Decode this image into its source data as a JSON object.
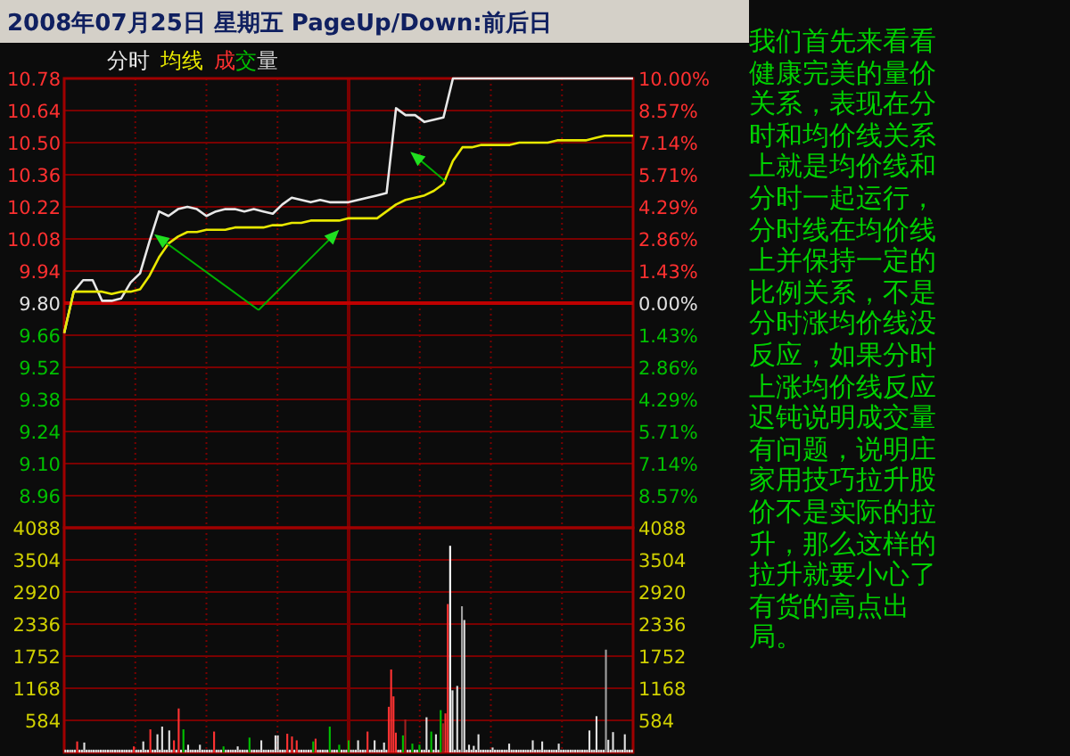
{
  "chart_data": [
    {
      "type": "line",
      "title": "2008年07月25日 星期五 PageUp/Down:前后日",
      "grid": true,
      "tick_labels": "y",
      "categories": [
        null,
        null,
        null,
        null,
        null,
        null,
        null,
        null,
        null,
        null,
        null,
        null,
        null,
        null,
        null,
        null,
        null,
        null,
        null,
        null,
        null,
        null,
        null,
        null,
        null,
        null,
        null,
        null,
        null,
        null,
        null,
        null,
        null,
        null,
        null,
        null,
        null,
        null,
        null,
        null,
        null,
        null,
        null,
        null,
        null,
        null,
        null,
        null,
        null,
        null,
        null,
        null,
        null,
        null,
        null,
        null,
        null,
        null,
        null,
        null,
        null
      ],
      "ylim": [
        8.82,
        10.78
      ],
      "yticks": [
        {
          "value": 10.78,
          "label": "10.78"
        },
        {
          "value": 10.64,
          "label": "10.64"
        },
        {
          "value": 10.5,
          "label": "10.50"
        },
        {
          "value": 10.36,
          "label": "10.36"
        },
        {
          "value": 10.22,
          "label": "10.22"
        },
        {
          "value": 10.08,
          "label": "10.08"
        },
        {
          "value": 9.94,
          "label": "9.94"
        },
        {
          "value": 9.8,
          "label": "9.80"
        },
        {
          "value": 9.66,
          "label": "9.66"
        },
        {
          "value": 9.52,
          "label": "9.52"
        },
        {
          "value": 9.38,
          "label": "9.38"
        },
        {
          "value": 9.24,
          "label": "9.24"
        },
        {
          "value": 9.1,
          "label": "9.10"
        },
        {
          "value": 8.96,
          "label": "8.96"
        }
      ],
      "y2lim": [
        -10,
        10
      ],
      "y2ticks": [
        {
          "value": 10,
          "label": "10.00%"
        },
        {
          "value": 8.57,
          "label": "8.57%"
        },
        {
          "value": 7.14,
          "label": "7.14%"
        },
        {
          "value": 5.71,
          "label": "5.71%"
        },
        {
          "value": 4.29,
          "label": "4.29%"
        },
        {
          "value": 2.86,
          "label": "2.86%"
        },
        {
          "value": 1.43,
          "label": "1.43%"
        },
        {
          "value": 0,
          "label": "0.00%"
        },
        {
          "value": -1.43,
          "label": "1.43%"
        },
        {
          "value": -2.86,
          "label": "2.86%"
        },
        {
          "value": -4.29,
          "label": "4.29%"
        },
        {
          "value": -5.71,
          "label": "5.71%"
        },
        {
          "value": -7.14,
          "label": "7.14%"
        },
        {
          "value": -8.57,
          "label": "8.57%"
        }
      ],
      "ref_lines": [
        {
          "axis": "y",
          "value": 9.8,
          "color": "#c00000"
        }
      ],
      "series": [
        {
          "name": "分时",
          "color": "#e8e8e8",
          "values": [
            9.67,
            9.85,
            9.9,
            9.9,
            9.81,
            9.81,
            9.82,
            9.89,
            9.93,
            10.07,
            10.2,
            10.18,
            10.21,
            10.22,
            10.21,
            10.18,
            10.2,
            10.21,
            10.21,
            10.2,
            10.21,
            10.2,
            10.19,
            10.23,
            10.26,
            10.25,
            10.24,
            10.25,
            10.24,
            10.24,
            10.24,
            10.25,
            10.26,
            10.27,
            10.28,
            10.65,
            10.62,
            10.62,
            10.59,
            10.6,
            10.61,
            10.78,
            10.78,
            10.78,
            10.78,
            10.78,
            10.78,
            10.78,
            10.78,
            10.78,
            10.78,
            10.78,
            10.78,
            10.78,
            10.78,
            10.78,
            10.78,
            10.78,
            10.78,
            10.78,
            10.78
          ]
        },
        {
          "name": "均线",
          "color": "#e8e800",
          "values": [
            9.67,
            9.85,
            9.85,
            9.85,
            9.85,
            9.84,
            9.85,
            9.85,
            9.86,
            9.92,
            10.0,
            10.06,
            10.09,
            10.11,
            10.11,
            10.12,
            10.12,
            10.12,
            10.13,
            10.13,
            10.13,
            10.13,
            10.14,
            10.14,
            10.15,
            10.15,
            10.16,
            10.16,
            10.16,
            10.16,
            10.17,
            10.17,
            10.17,
            10.17,
            10.2,
            10.23,
            10.25,
            10.26,
            10.27,
            10.29,
            10.32,
            10.42,
            10.48,
            10.48,
            10.49,
            10.49,
            10.49,
            10.49,
            10.5,
            10.5,
            10.5,
            10.5,
            10.51,
            10.51,
            10.51,
            10.51,
            10.52,
            10.53,
            10.53,
            10.53,
            10.53
          ]
        }
      ],
      "annotations": [
        "我们首先来看看健康完美的量价关系，表现在分时和均价线关系上就是均价线和分时一起运行，分时线在均价线上并保持一定的比例关系，不是分时涨均价线没反应，如果分时上涨均价线反应迟钝说明成交量有问题，说明庄家用技巧拉升股价不是实际的拉升，那么这样的拉升就要小心了有货的高点出局。"
      ]
    },
    {
      "type": "bar",
      "title": "成交量",
      "grid": true,
      "tick_labels": "y",
      "categories": [
        null,
        null,
        null,
        null,
        null,
        null,
        null,
        null,
        null,
        null,
        null,
        null,
        null,
        null,
        null,
        null,
        null,
        null,
        null,
        null,
        null,
        null,
        null,
        null,
        null,
        null,
        null,
        null,
        null,
        null,
        null,
        null,
        null,
        null,
        null,
        null,
        null,
        null,
        null,
        null,
        null,
        null,
        null,
        null,
        null,
        null,
        null,
        null,
        null,
        null,
        null,
        null,
        null,
        null,
        null,
        null,
        null,
        null,
        null,
        null,
        null,
        null,
        null,
        null,
        null,
        null,
        null,
        null,
        null,
        null,
        null,
        null,
        null,
        null,
        null,
        null,
        null,
        null,
        null,
        null,
        null,
        null,
        null,
        null,
        null,
        null,
        null,
        null,
        null,
        null,
        null,
        null,
        null,
        null,
        null,
        null,
        null,
        null,
        null,
        null,
        null,
        null,
        null,
        null,
        null,
        null,
        null,
        null,
        null,
        null,
        null,
        null,
        null,
        null,
        null,
        null,
        null,
        null,
        null,
        null,
        null,
        null,
        null,
        null,
        null,
        null,
        null,
        null,
        null,
        null,
        null,
        null,
        null,
        null,
        null,
        null,
        null,
        null,
        null,
        null,
        null,
        null,
        null,
        null,
        null,
        null,
        null,
        null,
        null,
        null,
        null,
        null,
        null,
        null,
        null,
        null,
        null,
        null,
        null,
        null,
        null,
        null,
        null,
        null,
        null,
        null,
        null,
        null,
        null,
        null,
        null,
        null,
        null,
        null,
        null,
        null,
        null,
        null,
        null,
        null,
        null,
        null,
        null,
        null,
        null,
        null,
        null,
        null,
        null,
        null,
        null,
        null,
        null,
        null,
        null,
        null,
        null,
        null,
        null,
        null,
        null,
        null,
        null,
        null,
        null,
        null,
        null,
        null,
        null,
        null,
        null,
        null,
        null,
        null,
        null,
        null,
        null,
        null,
        null,
        null,
        null,
        null,
        null,
        null,
        null,
        null,
        null,
        null,
        null,
        null,
        null,
        null,
        null,
        null,
        null,
        null,
        null,
        null,
        null,
        null,
        null
      ],
      "ylim": [
        0,
        4088
      ],
      "yticks": [
        {
          "value": 4088,
          "label": "4088"
        },
        {
          "value": 3504,
          "label": "3504"
        },
        {
          "value": 2920,
          "label": "2920"
        },
        {
          "value": 2336,
          "label": "2336"
        },
        {
          "value": 1752,
          "label": "1752"
        },
        {
          "value": 1168,
          "label": "1168"
        },
        {
          "value": 584,
          "label": "584"
        }
      ],
      "y2lim": [
        0,
        4088
      ],
      "y2ticks": [
        {
          "value": 4088,
          "label": "4088"
        },
        {
          "value": 3504,
          "label": "3504"
        },
        {
          "value": 2920,
          "label": "2920"
        },
        {
          "value": 2336,
          "label": "2336"
        },
        {
          "value": 1752,
          "label": "1752"
        },
        {
          "value": 1168,
          "label": "1168"
        },
        {
          "value": 584,
          "label": "584"
        }
      ],
      "values": [
        50,
        50,
        50,
        50,
        50,
        200,
        50,
        50,
        180,
        50,
        50,
        50,
        50,
        50,
        50,
        50,
        50,
        50,
        50,
        50,
        50,
        50,
        50,
        50,
        50,
        50,
        50,
        50,
        50,
        110,
        50,
        50,
        50,
        200,
        50,
        50,
        420,
        50,
        50,
        330,
        50,
        470,
        50,
        50,
        400,
        50,
        220,
        50,
        800,
        50,
        420,
        50,
        140,
        50,
        50,
        50,
        50,
        140,
        50,
        50,
        50,
        50,
        50,
        380,
        50,
        50,
        50,
        110,
        50,
        50,
        50,
        50,
        50,
        110,
        50,
        50,
        50,
        50,
        270,
        50,
        50,
        50,
        50,
        220,
        50,
        50,
        50,
        50,
        50,
        310,
        310,
        50,
        50,
        50,
        340,
        50,
        290,
        50,
        220,
        50,
        50,
        50,
        50,
        50,
        50,
        200,
        250,
        50,
        50,
        50,
        50,
        50,
        470,
        50,
        50,
        50,
        140,
        50,
        50,
        50,
        220,
        50,
        50,
        50,
        220,
        50,
        50,
        50,
        380,
        50,
        50,
        220,
        50,
        50,
        50,
        180,
        50,
        830,
        1510,
        1020,
        360,
        50,
        50,
        310,
        600,
        50,
        50,
        160,
        50,
        50,
        140,
        50,
        50,
        640,
        50,
        380,
        50,
        330,
        50,
        770,
        530,
        710,
        2700,
        3760,
        1130,
        50,
        1210,
        50,
        2660,
        2410,
        50,
        140,
        50,
        120,
        50,
        330,
        50,
        50,
        50,
        50,
        50,
        90,
        50,
        50,
        50,
        50,
        50,
        50,
        160,
        50,
        50,
        50,
        50,
        50,
        50,
        50,
        50,
        50,
        220,
        50,
        50,
        50,
        200,
        50,
        50,
        50,
        50,
        50,
        50,
        160,
        50,
        50,
        50,
        50,
        50,
        50,
        50,
        50,
        50,
        50,
        50,
        50,
        400,
        50,
        50,
        660,
        50,
        50,
        50,
        1870,
        230,
        50,
        370,
        50,
        50,
        50,
        50,
        330,
        50,
        50,
        50
      ],
      "colors": [
        "#e0e0e0",
        "#e0e0e0",
        "#e0e0e0",
        "#e0e0e0",
        "#e0e0e0",
        "#ff3232",
        "#e0e0e0",
        "#e0e0e0",
        "#e0e0e0",
        "#e0e0e0",
        "#e0e0e0",
        "#e0e0e0",
        "#e0e0e0",
        "#e0e0e0",
        "#e0e0e0",
        "#e0e0e0",
        "#e0e0e0",
        "#e0e0e0",
        "#e0e0e0",
        "#e0e0e0",
        "#e0e0e0",
        "#e0e0e0",
        "#e0e0e0",
        "#e0e0e0",
        "#e0e0e0",
        "#e0e0e0",
        "#e0e0e0",
        "#e0e0e0",
        "#e0e0e0",
        "#ff3232",
        "#e0e0e0",
        "#e0e0e0",
        "#e0e0e0",
        "#e0e0e0",
        "#e0e0e0",
        "#e0e0e0",
        "#ff3232",
        "#e0e0e0",
        "#e0e0e0",
        "#e0e0e0",
        "#e0e0e0",
        "#e0e0e0",
        "#e0e0e0",
        "#e0e0e0",
        "#e0e0e0",
        "#e0e0e0",
        "#ff3232",
        "#e0e0e0",
        "#ff3232",
        "#e0e0e0",
        "#00c000",
        "#e0e0e0",
        "#e0e0e0",
        "#e0e0e0",
        "#e0e0e0",
        "#e0e0e0",
        "#e0e0e0",
        "#e0e0e0",
        "#e0e0e0",
        "#e0e0e0",
        "#e0e0e0",
        "#e0e0e0",
        "#e0e0e0",
        "#ff3232",
        "#e0e0e0",
        "#e0e0e0",
        "#e0e0e0",
        "#00c000",
        "#e0e0e0",
        "#e0e0e0",
        "#e0e0e0",
        "#e0e0e0",
        "#e0e0e0",
        "#e0e0e0",
        "#e0e0e0",
        "#e0e0e0",
        "#e0e0e0",
        "#e0e0e0",
        "#00c000",
        "#e0e0e0",
        "#e0e0e0",
        "#e0e0e0",
        "#e0e0e0",
        "#e0e0e0",
        "#e0e0e0",
        "#e0e0e0",
        "#e0e0e0",
        "#e0e0e0",
        "#e0e0e0",
        "#e0e0e0",
        "#e0e0e0",
        "#e0e0e0",
        "#e0e0e0",
        "#e0e0e0",
        "#ff3232",
        "#e0e0e0",
        "#ff3232",
        "#e0e0e0",
        "#ff3232",
        "#e0e0e0",
        "#e0e0e0",
        "#e0e0e0",
        "#e0e0e0",
        "#e0e0e0",
        "#e0e0e0",
        "#00c000",
        "#ff3232",
        "#e0e0e0",
        "#e0e0e0",
        "#e0e0e0",
        "#e0e0e0",
        "#e0e0e0",
        "#00c000",
        "#e0e0e0",
        "#e0e0e0",
        "#e0e0e0",
        "#00c000",
        "#e0e0e0",
        "#e0e0e0",
        "#e0e0e0",
        "#00c000",
        "#e0e0e0",
        "#e0e0e0",
        "#e0e0e0",
        "#e0e0e0",
        "#e0e0e0",
        "#e0e0e0",
        "#e0e0e0",
        "#ff3232",
        "#e0e0e0",
        "#e0e0e0",
        "#e0e0e0",
        "#e0e0e0",
        "#e0e0e0",
        "#e0e0e0",
        "#e0e0e0",
        "#e0e0e0",
        "#ff3232",
        "#ff3232",
        "#ff3232",
        "#ff3232",
        "#e0e0e0",
        "#e0e0e0",
        "#00c000",
        "#a02020",
        "#e0e0e0",
        "#e0e0e0",
        "#00c000",
        "#e0e0e0",
        "#e0e0e0",
        "#00c000",
        "#e0e0e0",
        "#e0e0e0",
        "#e0e0e0",
        "#e0e0e0",
        "#00c000",
        "#e0e0e0",
        "#e0e0e0",
        "#e0e0e0",
        "#00c000",
        "#a02020",
        "#ff3232",
        "#ff3232",
        "#ffffff",
        "#e0e0e0",
        "#e0e0e0",
        "#e0e0e0",
        "#e0e0e0",
        "#a0a0a0",
        "#e0e0e0",
        "#e0e0e0",
        "#e0e0e0",
        "#e0e0e0",
        "#e0e0e0",
        "#e0e0e0",
        "#e0e0e0",
        "#e0e0e0",
        "#e0e0e0",
        "#e0e0e0",
        "#e0e0e0",
        "#e0e0e0",
        "#e0e0e0",
        "#e0e0e0",
        "#e0e0e0",
        "#e0e0e0",
        "#e0e0e0",
        "#e0e0e0",
        "#e0e0e0",
        "#e0e0e0",
        "#e0e0e0",
        "#e0e0e0",
        "#e0e0e0",
        "#e0e0e0",
        "#e0e0e0",
        "#e0e0e0",
        "#e0e0e0",
        "#e0e0e0",
        "#e0e0e0",
        "#e0e0e0",
        "#e0e0e0",
        "#e0e0e0",
        "#e0e0e0",
        "#e0e0e0",
        "#e0e0e0",
        "#e0e0e0",
        "#e0e0e0",
        "#e0e0e0",
        "#e0e0e0",
        "#e0e0e0",
        "#e0e0e0",
        "#e0e0e0",
        "#e0e0e0",
        "#e0e0e0",
        "#e0e0e0",
        "#e0e0e0",
        "#e0e0e0",
        "#e0e0e0",
        "#e0e0e0",
        "#e0e0e0",
        "#e0e0e0",
        "#e0e0e0",
        "#e0e0e0",
        "#e0e0e0",
        "#e0e0e0",
        "#e0e0e0",
        "#e0e0e0",
        "#e0e0e0",
        "#e0e0e0",
        "#e0e0e0",
        "#a0a0a0",
        "#e0e0e0",
        "#e0e0e0",
        "#e0e0e0",
        "#e0e0e0",
        "#e0e0e0",
        "#e0e0e0",
        "#e0e0e0",
        "#e0e0e0",
        "#e0e0e0",
        "#e0e0e0",
        "#e0e0e0"
      ]
    }
  ]
}
